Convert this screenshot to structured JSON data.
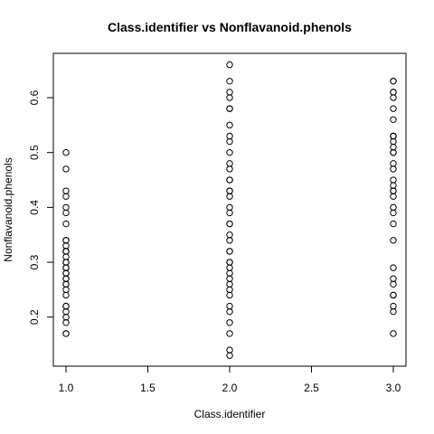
{
  "chart_data": {
    "type": "scatter",
    "title": "Class.identifier vs Nonflavanoid.phenols",
    "xlabel": "Class.identifier",
    "ylabel": "Nonflavanoid.phenols",
    "xlim": [
      1.0,
      3.0
    ],
    "ylim": [
      0.13,
      0.66
    ],
    "xticks": [
      "1.0",
      "1.5",
      "2.0",
      "2.5",
      "3.0"
    ],
    "yticks": [
      "0.2",
      "0.3",
      "0.4",
      "0.5",
      "0.6"
    ],
    "grid": false,
    "series": [
      {
        "points": [
          [
            1,
            0.17
          ],
          [
            1,
            0.17
          ],
          [
            1,
            0.19
          ],
          [
            1,
            0.2
          ],
          [
            1,
            0.21
          ],
          [
            1,
            0.22
          ],
          [
            1,
            0.22
          ],
          [
            1,
            0.24
          ],
          [
            1,
            0.25
          ],
          [
            1,
            0.26
          ],
          [
            1,
            0.26
          ],
          [
            1,
            0.27
          ],
          [
            1,
            0.27
          ],
          [
            1,
            0.28
          ],
          [
            1,
            0.28
          ],
          [
            1,
            0.29
          ],
          [
            1,
            0.29
          ],
          [
            1,
            0.3
          ],
          [
            1,
            0.3
          ],
          [
            1,
            0.31
          ],
          [
            1,
            0.32
          ],
          [
            1,
            0.32
          ],
          [
            1,
            0.32
          ],
          [
            1,
            0.33
          ],
          [
            1,
            0.34
          ],
          [
            1,
            0.34
          ],
          [
            1,
            0.37
          ],
          [
            1,
            0.39
          ],
          [
            1,
            0.4
          ],
          [
            1,
            0.42
          ],
          [
            1,
            0.43
          ],
          [
            1,
            0.47
          ],
          [
            1,
            0.5
          ],
          [
            2,
            0.13
          ],
          [
            2,
            0.14
          ],
          [
            2,
            0.17
          ],
          [
            2,
            0.19
          ],
          [
            2,
            0.21
          ],
          [
            2,
            0.22
          ],
          [
            2,
            0.24
          ],
          [
            2,
            0.25
          ],
          [
            2,
            0.26
          ],
          [
            2,
            0.27
          ],
          [
            2,
            0.28
          ],
          [
            2,
            0.29
          ],
          [
            2,
            0.3
          ],
          [
            2,
            0.3
          ],
          [
            2,
            0.32
          ],
          [
            2,
            0.32
          ],
          [
            2,
            0.34
          ],
          [
            2,
            0.35
          ],
          [
            2,
            0.37
          ],
          [
            2,
            0.37
          ],
          [
            2,
            0.39
          ],
          [
            2,
            0.4
          ],
          [
            2,
            0.42
          ],
          [
            2,
            0.43
          ],
          [
            2,
            0.43
          ],
          [
            2,
            0.45
          ],
          [
            2,
            0.45
          ],
          [
            2,
            0.47
          ],
          [
            2,
            0.48
          ],
          [
            2,
            0.5
          ],
          [
            2,
            0.52
          ],
          [
            2,
            0.53
          ],
          [
            2,
            0.55
          ],
          [
            2,
            0.58
          ],
          [
            2,
            0.58
          ],
          [
            2,
            0.6
          ],
          [
            2,
            0.61
          ],
          [
            2,
            0.63
          ],
          [
            2,
            0.66
          ],
          [
            3,
            0.17
          ],
          [
            3,
            0.21
          ],
          [
            3,
            0.22
          ],
          [
            3,
            0.24
          ],
          [
            3,
            0.24
          ],
          [
            3,
            0.26
          ],
          [
            3,
            0.27
          ],
          [
            3,
            0.29
          ],
          [
            3,
            0.34
          ],
          [
            3,
            0.37
          ],
          [
            3,
            0.39
          ],
          [
            3,
            0.4
          ],
          [
            3,
            0.42
          ],
          [
            3,
            0.43
          ],
          [
            3,
            0.43
          ],
          [
            3,
            0.44
          ],
          [
            3,
            0.45
          ],
          [
            3,
            0.47
          ],
          [
            3,
            0.48
          ],
          [
            3,
            0.5
          ],
          [
            3,
            0.5
          ],
          [
            3,
            0.51
          ],
          [
            3,
            0.52
          ],
          [
            3,
            0.53
          ],
          [
            3,
            0.53
          ],
          [
            3,
            0.53
          ],
          [
            3,
            0.56
          ],
          [
            3,
            0.58
          ],
          [
            3,
            0.6
          ],
          [
            3,
            0.61
          ],
          [
            3,
            0.61
          ],
          [
            3,
            0.63
          ],
          [
            3,
            0.63
          ]
        ]
      }
    ]
  }
}
